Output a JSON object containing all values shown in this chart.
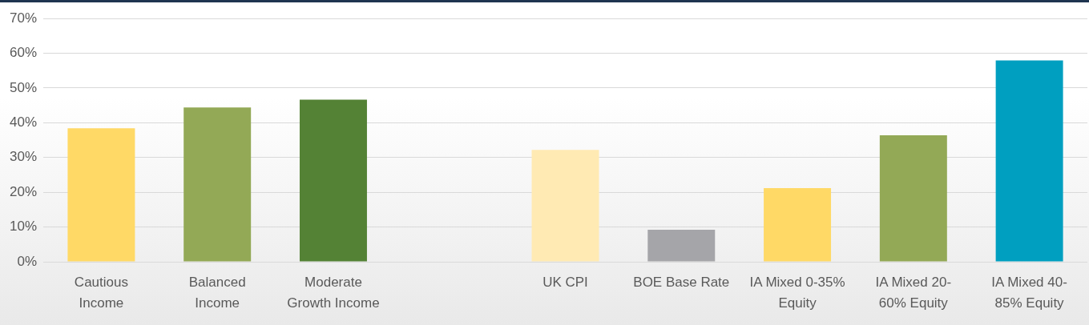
{
  "chart_data": {
    "type": "bar",
    "categories": [
      "Cautious Income",
      "Balanced Income",
      "Moderate Growth Income",
      null,
      "UK CPI",
      "BOE Base Rate",
      "IA Mixed 0-35% Equity",
      "IA Mixed 20-60% Equity",
      "IA Mixed 40-85% Equity"
    ],
    "values": [
      38.4,
      44.4,
      46.6,
      null,
      32.2,
      9.2,
      21.2,
      36.4,
      57.9
    ],
    "colors": [
      "#ffd966",
      "#93a956",
      "#548235",
      "#ffffff",
      "#ffeab3",
      "#a5a5a9",
      "#ffd966",
      "#93a956",
      "#009fc0"
    ],
    "ylim": [
      0,
      70
    ],
    "yticks": [
      {
        "value": 0,
        "label": "0%"
      },
      {
        "value": 10,
        "label": "10%"
      },
      {
        "value": 20,
        "label": "20%"
      },
      {
        "value": 30,
        "label": "30%"
      },
      {
        "value": 40,
        "label": "40%"
      },
      {
        "value": 50,
        "label": "50%"
      },
      {
        "value": 60,
        "label": "60%"
      },
      {
        "value": 70,
        "label": "70%"
      }
    ],
    "grid": "y",
    "legend": false
  }
}
